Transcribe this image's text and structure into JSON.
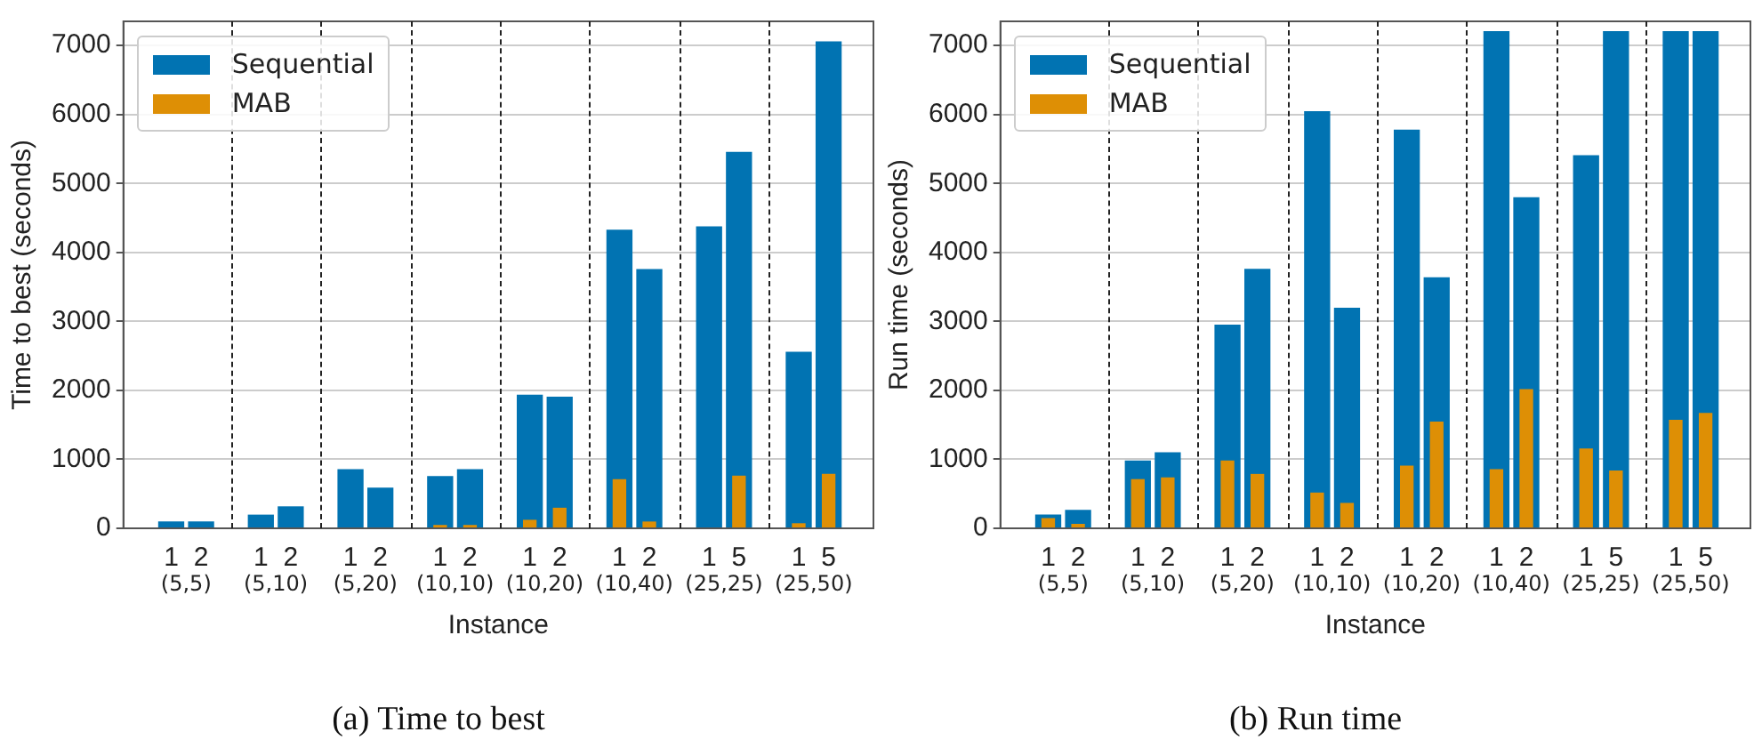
{
  "chart_data": [
    {
      "type": "bar",
      "title": "(a)  Time to best",
      "xlabel": "Instance",
      "ylabel": "Time to best (seconds)",
      "categories": [
        "1",
        "2",
        "1",
        "2",
        "1",
        "2",
        "1",
        "2",
        "1",
        "2",
        "1",
        "2",
        "1",
        "5",
        "1",
        "5"
      ],
      "annotations": [
        "(5,5)",
        "(5,10)",
        "(5,20)",
        "(10,10)",
        "(10,20)",
        "(10,40)",
        "(25,25)",
        "(25,50)"
      ],
      "series": [
        {
          "name": "Sequential",
          "color": "#0173b2",
          "values": [
            90,
            90,
            190,
            310,
            850,
            580,
            750,
            850,
            1930,
            1900,
            4320,
            3750,
            4370,
            5450,
            2550,
            7050
          ]
        },
        {
          "name": "MAB",
          "color": "#de8f05",
          "values": [
            0,
            0,
            0,
            0,
            0,
            0,
            40,
            40,
            115,
            290,
            705,
            90,
            0,
            755,
            65,
            780
          ]
        }
      ],
      "ylim": [
        0,
        7350
      ],
      "yticks": [
        0,
        1000,
        2000,
        3000,
        4000,
        5000,
        6000,
        7000
      ],
      "grid": "y",
      "legend": "top left"
    },
    {
      "type": "bar",
      "title": "(b)  Run time",
      "xlabel": "Instance",
      "ylabel": "Run time (seconds)",
      "categories": [
        "1",
        "2",
        "1",
        "2",
        "1",
        "2",
        "1",
        "2",
        "1",
        "2",
        "1",
        "2",
        "1",
        "5",
        "1",
        "5"
      ],
      "annotations": [
        "(5,5)",
        "(5,10)",
        "(5,20)",
        "(10,10)",
        "(10,20)",
        "(10,40)",
        "(25,25)",
        "(25,50)"
      ],
      "series": [
        {
          "name": "Sequential",
          "color": "#0173b2",
          "values": [
            190,
            260,
            975,
            1095,
            2945,
            3755,
            6040,
            3190,
            5770,
            3630,
            7200,
            4790,
            5400,
            7200,
            7200,
            7200
          ]
        },
        {
          "name": "MAB",
          "color": "#de8f05",
          "values": [
            140,
            55,
            705,
            730,
            975,
            780,
            510,
            360,
            900,
            1540,
            850,
            2010,
            1150,
            830,
            1565,
            1665
          ]
        }
      ],
      "ylim": [
        0,
        7350
      ],
      "yticks": [
        0,
        1000,
        2000,
        3000,
        4000,
        5000,
        6000,
        7000
      ],
      "grid": "y",
      "legend": "top left"
    }
  ]
}
